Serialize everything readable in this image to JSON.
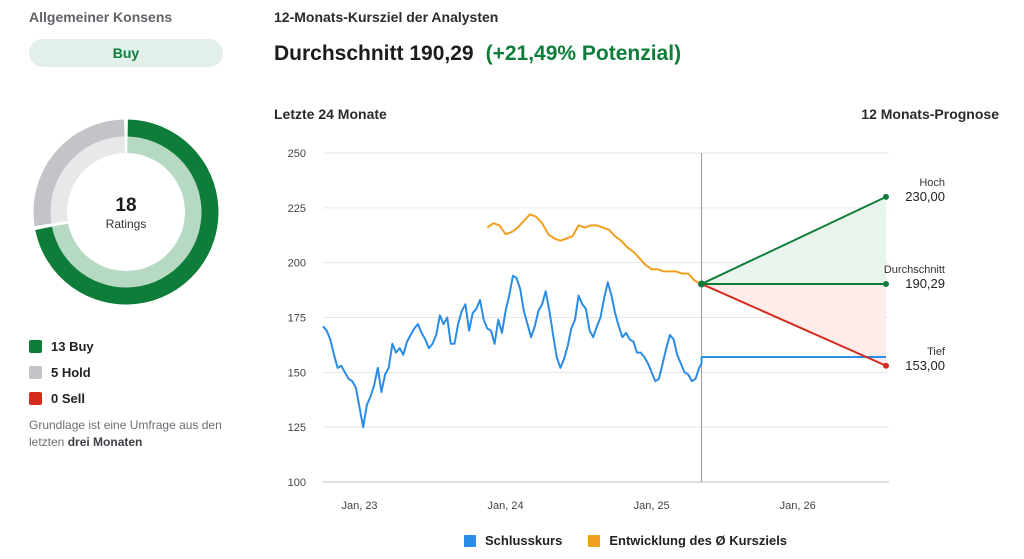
{
  "consensus": {
    "header": "Allgemeiner Konsens",
    "rating": "Buy",
    "total": "18",
    "total_label": "Ratings",
    "segments": [
      {
        "label": "13 Buy",
        "count": 13,
        "color": "#0f7d3a",
        "light": "#b5d9c2"
      },
      {
        "label": "5 Hold",
        "count": 5,
        "color": "#c3c4c7",
        "light": "#e8e8ea"
      },
      {
        "label": "0 Sell",
        "count": 0,
        "color": "#d52b1e",
        "light": "#f3c3bf"
      }
    ],
    "note_prefix": "Grundlage ist eine Umfrage aus den letzten ",
    "note_bold": "drei Monaten"
  },
  "header": {
    "title": "12-Monats-Kursziel der Analysten",
    "average_label": "Durchschnitt 190,29",
    "potential": "(+21,49% Potenzial)",
    "left_subtitle": "Letzte 24 Monate",
    "right_subtitle": "12 Monats-Prognose"
  },
  "chart_data": {
    "type": "line",
    "y_ticks": [
      "250",
      "225",
      "200",
      "175",
      "150",
      "125",
      "100"
    ],
    "ylim": [
      100,
      250
    ],
    "x_ticks": [
      "Jan, 23",
      "Jan, 24",
      "Jan, 25",
      "Jan, 26"
    ],
    "x_tick_months": [
      3,
      15,
      27,
      39
    ],
    "xlim_months": [
      0,
      46.5
    ],
    "today_month": 31.1,
    "series": [
      {
        "name": "Schlusskurs",
        "color": "#2b8ce6",
        "months": [
          0,
          0.3,
          0.6,
          0.9,
          1.2,
          1.5,
          1.8,
          2.1,
          2.4,
          2.7,
          3.0,
          3.3,
          3.6,
          3.9,
          4.2,
          4.5,
          4.8,
          5.1,
          5.4,
          5.7,
          6.0,
          6.3,
          6.6,
          6.9,
          7.2,
          7.5,
          7.8,
          8.1,
          8.4,
          8.7,
          9.0,
          9.3,
          9.6,
          9.9,
          10.2,
          10.5,
          10.8,
          11.1,
          11.4,
          11.7,
          12.0,
          12.3,
          12.6,
          12.9,
          13.2,
          13.5,
          13.8,
          14.1,
          14.4,
          14.7,
          15.0,
          15.3,
          15.6,
          15.9,
          16.2,
          16.5,
          16.8,
          17.1,
          17.4,
          17.7,
          18.0,
          18.3,
          18.6,
          18.9,
          19.2,
          19.5,
          19.8,
          20.1,
          20.4,
          20.7,
          21.0,
          21.3,
          21.6,
          21.9,
          22.2,
          22.5,
          22.8,
          23.1,
          23.4,
          23.7,
          24.0,
          24.3,
          24.6,
          24.9,
          25.2,
          25.5,
          25.8,
          26.1,
          26.4,
          26.7,
          27.0,
          27.3,
          27.6,
          27.9,
          28.2,
          28.5,
          28.8,
          29.1,
          29.4,
          29.7,
          30.0,
          30.3,
          30.6,
          30.9,
          31.1
        ],
        "values": [
          171,
          169,
          165,
          158,
          152,
          153,
          150,
          147,
          146,
          143,
          134,
          125,
          135,
          139,
          144,
          152,
          141,
          149,
          152,
          163,
          159,
          161,
          158,
          164,
          167,
          170,
          172,
          168,
          165,
          161,
          163,
          167,
          176,
          172,
          175,
          163,
          163,
          172,
          178,
          181,
          169,
          177,
          179,
          183,
          174,
          170,
          169,
          163,
          174,
          168,
          178,
          185,
          194,
          193,
          188,
          178,
          172,
          166,
          171,
          178,
          181,
          187,
          178,
          167,
          157,
          152,
          156,
          162,
          170,
          174,
          185,
          181,
          179,
          169,
          166,
          171,
          175,
          184,
          191,
          185,
          177,
          171,
          166,
          168,
          165,
          164,
          159,
          159,
          157,
          154,
          150,
          146,
          147,
          154,
          161,
          167,
          165,
          158,
          154,
          150,
          149,
          146,
          147,
          152,
          154
        ]
      },
      {
        "name": "Entwicklung des Ø Kursziels",
        "color": "#f0a01e",
        "months": [
          13.5,
          14.0,
          14.5,
          15.0,
          15.5,
          16.0,
          16.5,
          17.0,
          17.5,
          18.0,
          18.5,
          19.0,
          19.5,
          20.0,
          20.5,
          21.0,
          21.5,
          22.0,
          22.5,
          23.0,
          23.5,
          24.0,
          24.5,
          25.0,
          25.5,
          26.0,
          26.5,
          27.0,
          27.5,
          28.0,
          28.5,
          29.0,
          29.5,
          30.0,
          30.5,
          31.1
        ],
        "values": [
          216,
          218,
          217,
          213,
          214,
          216,
          219,
          222,
          221,
          218,
          213,
          211,
          210,
          211,
          212,
          217,
          216,
          217,
          217,
          216,
          215,
          212,
          210,
          207,
          205,
          202,
          199,
          197,
          197,
          196,
          196,
          196,
          195,
          195,
          192,
          190
        ]
      }
    ],
    "forecast": [
      {
        "label": "Hoch",
        "value": "230,00",
        "num": 230,
        "color": "#0f7d3a"
      },
      {
        "label": "Durchschnitt",
        "value": "190,29",
        "num": 190.29,
        "color": "#0f7d3a"
      },
      {
        "label": "Tief",
        "value": "153,00",
        "num": 153,
        "color": "#d52b1e"
      }
    ],
    "current_price": 157,
    "legend": [
      {
        "label": "Schlusskurs",
        "color": "#2b8ce6"
      },
      {
        "label": "Entwicklung des Ø Kursziels",
        "color": "#f0a01e"
      }
    ]
  }
}
